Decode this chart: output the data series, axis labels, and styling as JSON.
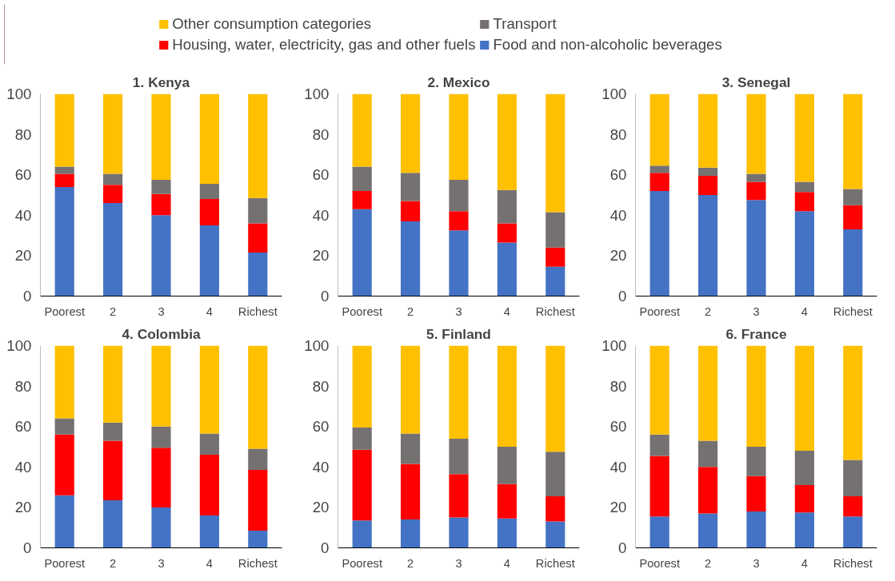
{
  "chart_data": [
    {
      "type": "bar",
      "title": "1. Kenya",
      "stacked": true,
      "legend": "top",
      "categories": [
        "Poorest",
        "2",
        "3",
        "4",
        "Richest"
      ],
      "ylim": [
        0,
        100
      ],
      "yticks": [
        0,
        20,
        40,
        60,
        80,
        100
      ],
      "grid": false,
      "series": [
        {
          "name": "Food and non-alcoholic beverages",
          "color": "#4472c4",
          "values": [
            54,
            46,
            40,
            35,
            21.5
          ]
        },
        {
          "name": "Housing, water, electricity, gas and other fuels",
          "color": "#ff0000",
          "values": [
            6.5,
            9,
            10.5,
            13,
            14.5
          ]
        },
        {
          "name": "Transport",
          "color": "#767171",
          "values": [
            3.5,
            5.5,
            7,
            7.5,
            12.5
          ]
        },
        {
          "name": "Other consumption categories",
          "color": "#ffc000",
          "values": [
            36,
            39.5,
            42.5,
            44.5,
            51.5
          ]
        }
      ]
    },
    {
      "type": "bar",
      "title": "2. Mexico",
      "stacked": true,
      "categories": [
        "Poorest",
        "2",
        "3",
        "4",
        "Richest"
      ],
      "ylim": [
        0,
        100
      ],
      "yticks": [
        0,
        20,
        40,
        60,
        80,
        100
      ],
      "grid": false,
      "series": [
        {
          "color": "#4472c4",
          "values": [
            43,
            37,
            32.5,
            26.5,
            14.5
          ]
        },
        {
          "color": "#ff0000",
          "values": [
            9,
            10,
            9.5,
            9.5,
            9.5
          ]
        },
        {
          "color": "#767171",
          "values": [
            12,
            14,
            15.5,
            16.5,
            17.5
          ]
        },
        {
          "color": "#ffc000",
          "values": [
            36,
            39,
            42.5,
            47.5,
            58.5
          ]
        }
      ]
    },
    {
      "type": "bar",
      "title": "3. Senegal",
      "stacked": true,
      "categories": [
        "Poorest",
        "2",
        "3",
        "4",
        "Richest"
      ],
      "ylim": [
        0,
        100
      ],
      "yticks": [
        0,
        20,
        40,
        60,
        80,
        100
      ],
      "grid": false,
      "series": [
        {
          "color": "#4472c4",
          "values": [
            52,
            50,
            47.5,
            42,
            33
          ]
        },
        {
          "color": "#ff0000",
          "values": [
            9,
            9.5,
            9,
            9.5,
            12
          ]
        },
        {
          "color": "#767171",
          "values": [
            3.5,
            4,
            4,
            5,
            8
          ]
        },
        {
          "color": "#ffc000",
          "values": [
            35.5,
            36.5,
            39.5,
            43.5,
            47
          ]
        }
      ]
    },
    {
      "type": "bar",
      "title": "4. Colombia",
      "stacked": true,
      "categories": [
        "Poorest",
        "2",
        "3",
        "4",
        "Richest"
      ],
      "ylim": [
        0,
        100
      ],
      "yticks": [
        0,
        20,
        40,
        60,
        80,
        100
      ],
      "grid": false,
      "series": [
        {
          "color": "#4472c4",
          "values": [
            26,
            23.5,
            20,
            16,
            8.5
          ]
        },
        {
          "color": "#ff0000",
          "values": [
            30,
            29.5,
            29.5,
            30,
            30
          ]
        },
        {
          "color": "#767171",
          "values": [
            8,
            9,
            10.5,
            10.5,
            10.5
          ]
        },
        {
          "color": "#ffc000",
          "values": [
            36,
            38,
            40,
            43.5,
            51
          ]
        }
      ]
    },
    {
      "type": "bar",
      "title": "5. Finland",
      "stacked": true,
      "categories": [
        "Poorest",
        "2",
        "3",
        "4",
        "Richest"
      ],
      "ylim": [
        0,
        100
      ],
      "yticks": [
        0,
        20,
        40,
        60,
        80,
        100
      ],
      "grid": false,
      "series": [
        {
          "color": "#4472c4",
          "values": [
            13.5,
            14,
            15,
            14.5,
            13
          ]
        },
        {
          "color": "#ff0000",
          "values": [
            35,
            27.5,
            21.5,
            17,
            12.5
          ]
        },
        {
          "color": "#767171",
          "values": [
            11,
            15,
            17.5,
            18.5,
            22
          ]
        },
        {
          "color": "#ffc000",
          "values": [
            40.5,
            43.5,
            46,
            50,
            52.5
          ]
        }
      ]
    },
    {
      "type": "bar",
      "title": "6. France",
      "stacked": true,
      "categories": [
        "Poorest",
        "2",
        "3",
        "4",
        "Richest"
      ],
      "ylim": [
        0,
        100
      ],
      "yticks": [
        0,
        20,
        40,
        60,
        80,
        100
      ],
      "grid": false,
      "series": [
        {
          "color": "#4472c4",
          "values": [
            15.5,
            17,
            18,
            17.5,
            15.5
          ]
        },
        {
          "color": "#ff0000",
          "values": [
            30,
            23,
            17.5,
            13.5,
            10
          ]
        },
        {
          "color": "#767171",
          "values": [
            10.5,
            13,
            14.5,
            17,
            18
          ]
        },
        {
          "color": "#ffc000",
          "values": [
            44,
            47,
            50,
            52,
            56.5
          ]
        }
      ]
    }
  ]
}
